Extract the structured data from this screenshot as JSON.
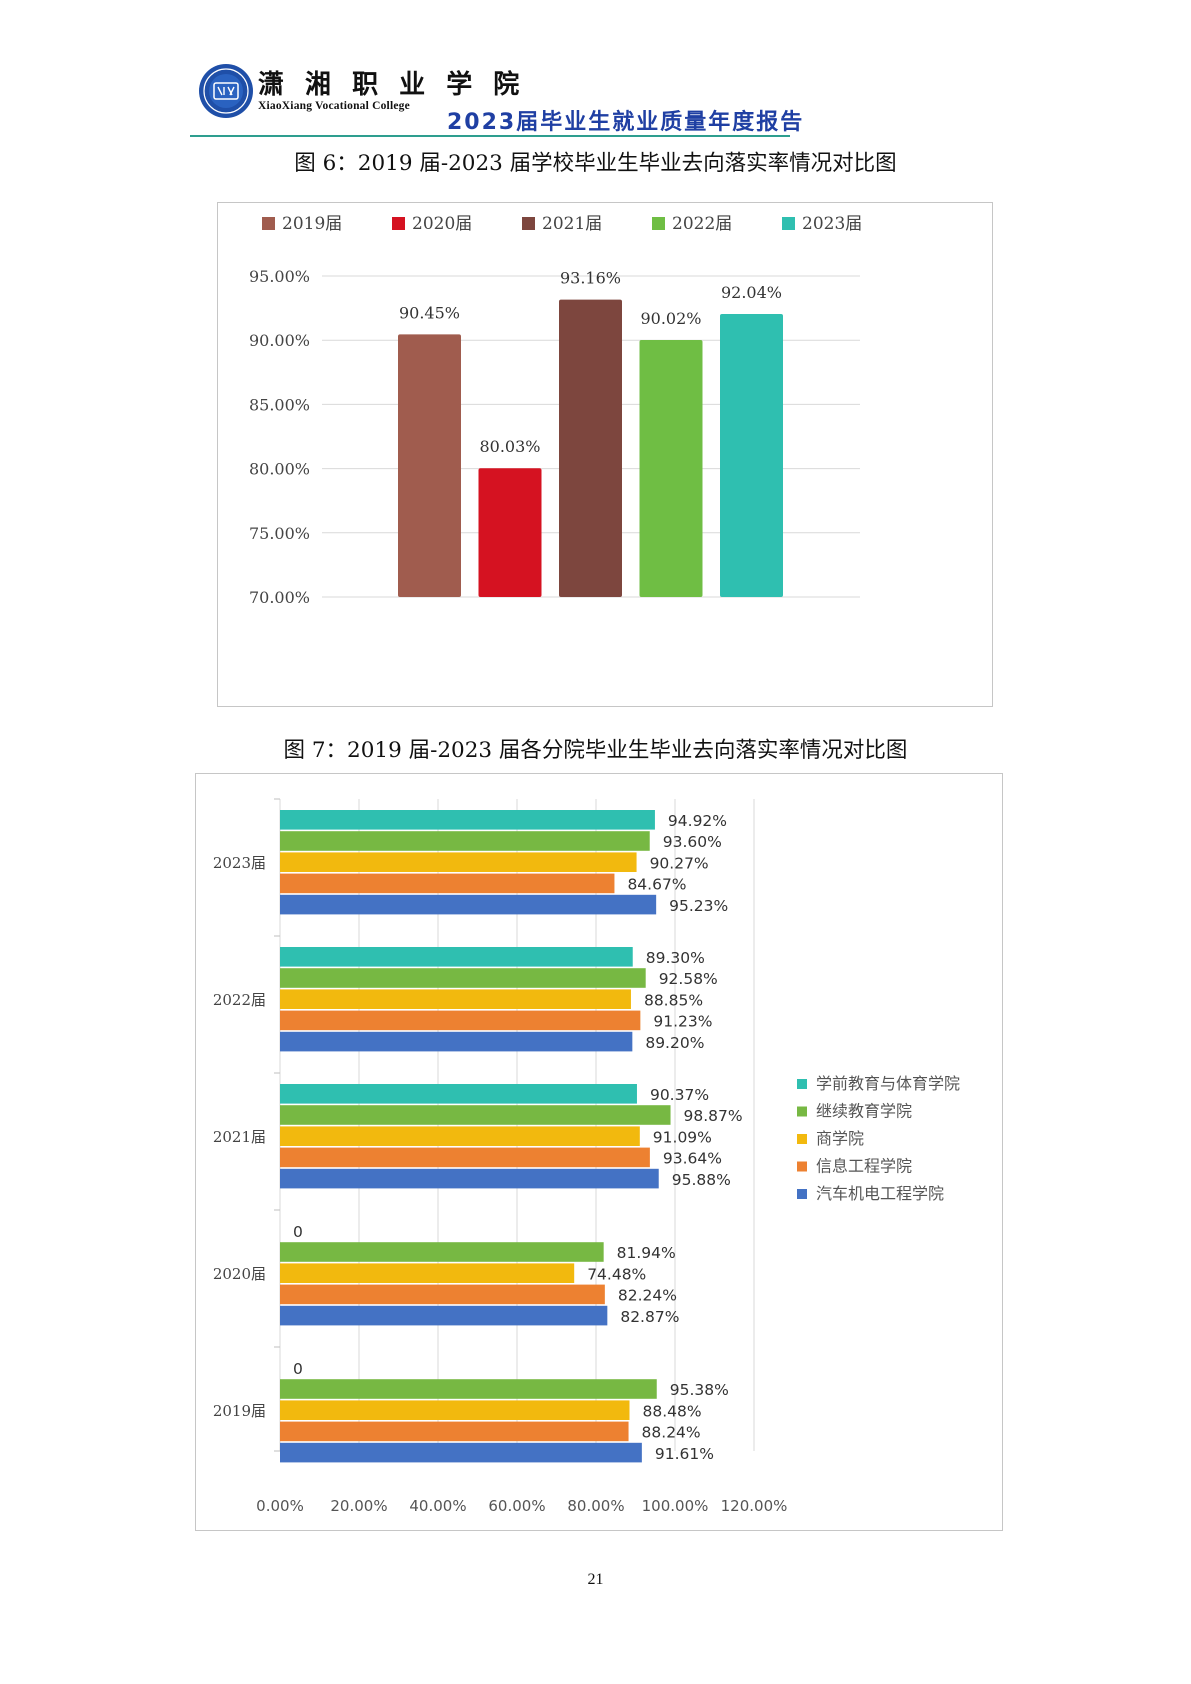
{
  "header": {
    "college_name_cn": "潇 湘 职 业 学 院",
    "college_name_en": "XiaoXiang Vocational College",
    "report_title": "2023届毕业生就业质量年度报告",
    "logo_icon": "college-seal-icon",
    "colors": {
      "title": "#1f3fa3",
      "rule": "#2e9e8f",
      "logo": "#1f4fa8"
    }
  },
  "figure6": {
    "caption": "图 6：2019 届-2023 届学校毕业生毕业去向落实率情况对比图"
  },
  "figure7": {
    "caption": "图 7：2019 届-2023 届各分院毕业生毕业去向落实率情况对比图"
  },
  "page_number": "21",
  "chart_data": [
    {
      "type": "bar",
      "orientation": "vertical",
      "title": "",
      "xlabel": "",
      "ylabel": "",
      "categories": [
        "2019届",
        "2020届",
        "2021届",
        "2022届",
        "2023届"
      ],
      "values": [
        90.45,
        80.03,
        93.16,
        90.02,
        92.04
      ],
      "data_labels": [
        "90.45%",
        "80.03%",
        "93.16%",
        "90.02%",
        "92.04%"
      ],
      "colors": [
        "#a05c4e",
        "#d51221",
        "#7d463e",
        "#6fbe44",
        "#2fbfb0"
      ],
      "legend": {
        "position": "top",
        "entries": [
          "2019届",
          "2020届",
          "2021届",
          "2022届",
          "2023届"
        ]
      },
      "ylim": [
        70,
        95
      ],
      "yticks": [
        70,
        75,
        80,
        85,
        90,
        95
      ],
      "ytick_labels": [
        "70.00%",
        "75.00%",
        "80.00%",
        "85.00%",
        "90.00%",
        "95.00%"
      ],
      "grid": true
    },
    {
      "type": "bar",
      "orientation": "horizontal",
      "title": "",
      "xlabel": "",
      "ylabel": "",
      "categories": [
        "2023届",
        "2022届",
        "2021届",
        "2020届",
        "2019届"
      ],
      "series": [
        {
          "name": "学前教育与体育学院",
          "color": "#2fbfb0",
          "values": [
            94.92,
            89.3,
            90.37,
            0,
            0
          ],
          "labels": [
            "94.92%",
            "89.30%",
            "90.37%",
            "0",
            "0"
          ]
        },
        {
          "name": "继续教育学院",
          "color": "#77b843",
          "values": [
            93.6,
            92.58,
            98.87,
            81.94,
            95.38
          ],
          "labels": [
            "93.60%",
            "92.58%",
            "98.87%",
            "81.94%",
            "95.38%"
          ]
        },
        {
          "name": "商学院",
          "color": "#f2b90e",
          "values": [
            90.27,
            88.85,
            91.09,
            74.48,
            88.48
          ],
          "labels": [
            "90.27%",
            "88.85%",
            "91.09%",
            "74.48%",
            "88.48%"
          ]
        },
        {
          "name": "信息工程学院",
          "color": "#ed8131",
          "values": [
            84.67,
            91.23,
            93.64,
            82.24,
            88.24
          ],
          "labels": [
            "84.67%",
            "91.23%",
            "93.64%",
            "82.24%",
            "88.24%"
          ]
        },
        {
          "name": "汽车机电工程学院",
          "color": "#4472c4",
          "values": [
            95.23,
            89.2,
            95.88,
            82.87,
            91.61
          ],
          "labels": [
            "95.23%",
            "89.20%",
            "95.88%",
            "82.87%",
            "91.61%"
          ]
        }
      ],
      "xlim": [
        0,
        120
      ],
      "xticks": [
        0,
        20,
        40,
        60,
        80,
        100,
        120
      ],
      "xtick_labels": [
        "0.00%",
        "20.00%",
        "40.00%",
        "60.00%",
        "80.00%",
        "100.00%",
        "120.00%"
      ],
      "legend": {
        "position": "right"
      },
      "grid": true
    }
  ]
}
